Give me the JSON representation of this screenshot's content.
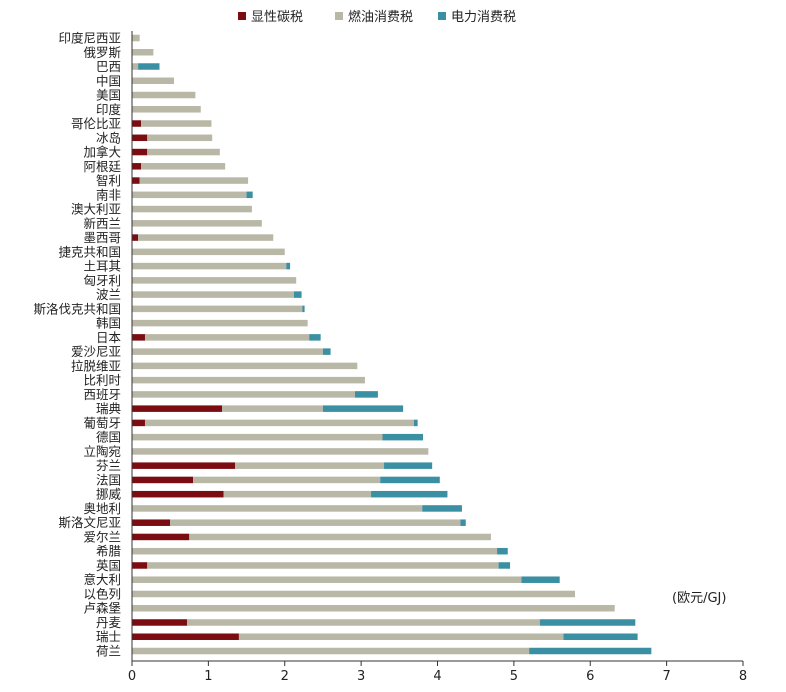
{
  "chart_data": {
    "type": "bar",
    "orientation": "horizontal",
    "stacked": true,
    "unit_label": "(欧元/GJ)",
    "xlim": [
      0,
      8
    ],
    "xticks": [
      "0",
      "1",
      "2",
      "3",
      "4",
      "5",
      "6",
      "7",
      "8"
    ],
    "grid": false,
    "legend_position": "top",
    "categories": [
      "印度尼西亚",
      "俄罗斯",
      "巴西",
      "中国",
      "美国",
      "印度",
      "哥伦比亚",
      "冰岛",
      "加拿大",
      "阿根廷",
      "智利",
      "南非",
      "澳大利亚",
      "新西兰",
      "墨西哥",
      "捷克共和国",
      "土耳其",
      "匈牙利",
      "波兰",
      "斯洛伐克共和国",
      "韩国",
      "日本",
      "爱沙尼亚",
      "拉脱维亚",
      "比利时",
      "西班牙",
      "瑞典",
      "葡萄牙",
      "德国",
      "立陶宛",
      "芬兰",
      "法国",
      "挪威",
      "奥地利",
      "斯洛文尼亚",
      "爱尔兰",
      "希腊",
      "英国",
      "意大利",
      "以色列",
      "卢森堡",
      "丹麦",
      "瑞士",
      "荷兰"
    ],
    "series": [
      {
        "name": "显性碳税",
        "color": "#7b0d12",
        "values": [
          0,
          0,
          0,
          0,
          0,
          0,
          0.12,
          0.2,
          0.2,
          0.12,
          0.1,
          0,
          0,
          0,
          0.08,
          0,
          0,
          0,
          0,
          0,
          0,
          0.17,
          0,
          0,
          0,
          0,
          1.18,
          0.17,
          0,
          0,
          1.35,
          0.8,
          1.2,
          0,
          0.5,
          0.75,
          0,
          0.2,
          0,
          0,
          0,
          0.72,
          1.4,
          0
        ]
      },
      {
        "name": "燃油消费税",
        "color": "#b9b7a6",
        "values": [
          0.1,
          0.28,
          0.08,
          0.55,
          0.83,
          0.9,
          0.92,
          0.85,
          0.95,
          1.1,
          1.42,
          1.5,
          1.57,
          1.7,
          1.77,
          2.0,
          2.02,
          2.15,
          2.12,
          2.23,
          2.3,
          2.15,
          2.5,
          2.95,
          3.05,
          2.92,
          1.32,
          3.52,
          3.28,
          3.88,
          1.95,
          2.45,
          1.93,
          3.8,
          3.8,
          3.95,
          4.78,
          4.6,
          5.1,
          5.8,
          6.32,
          4.62,
          4.25,
          5.2
        ]
      },
      {
        "name": "电力消费税",
        "color": "#3b8fa3",
        "values": [
          0,
          0,
          0.28,
          0,
          0,
          0,
          0,
          0,
          0,
          0,
          0,
          0.08,
          0,
          0,
          0,
          0,
          0.05,
          0,
          0.1,
          0.03,
          0,
          0.15,
          0.1,
          0,
          0,
          0.3,
          1.05,
          0.05,
          0.53,
          0,
          0.63,
          0.78,
          1.0,
          0.52,
          0.07,
          0,
          0.14,
          0.15,
          0.5,
          0,
          0,
          1.25,
          0.97,
          1.6
        ]
      }
    ]
  }
}
